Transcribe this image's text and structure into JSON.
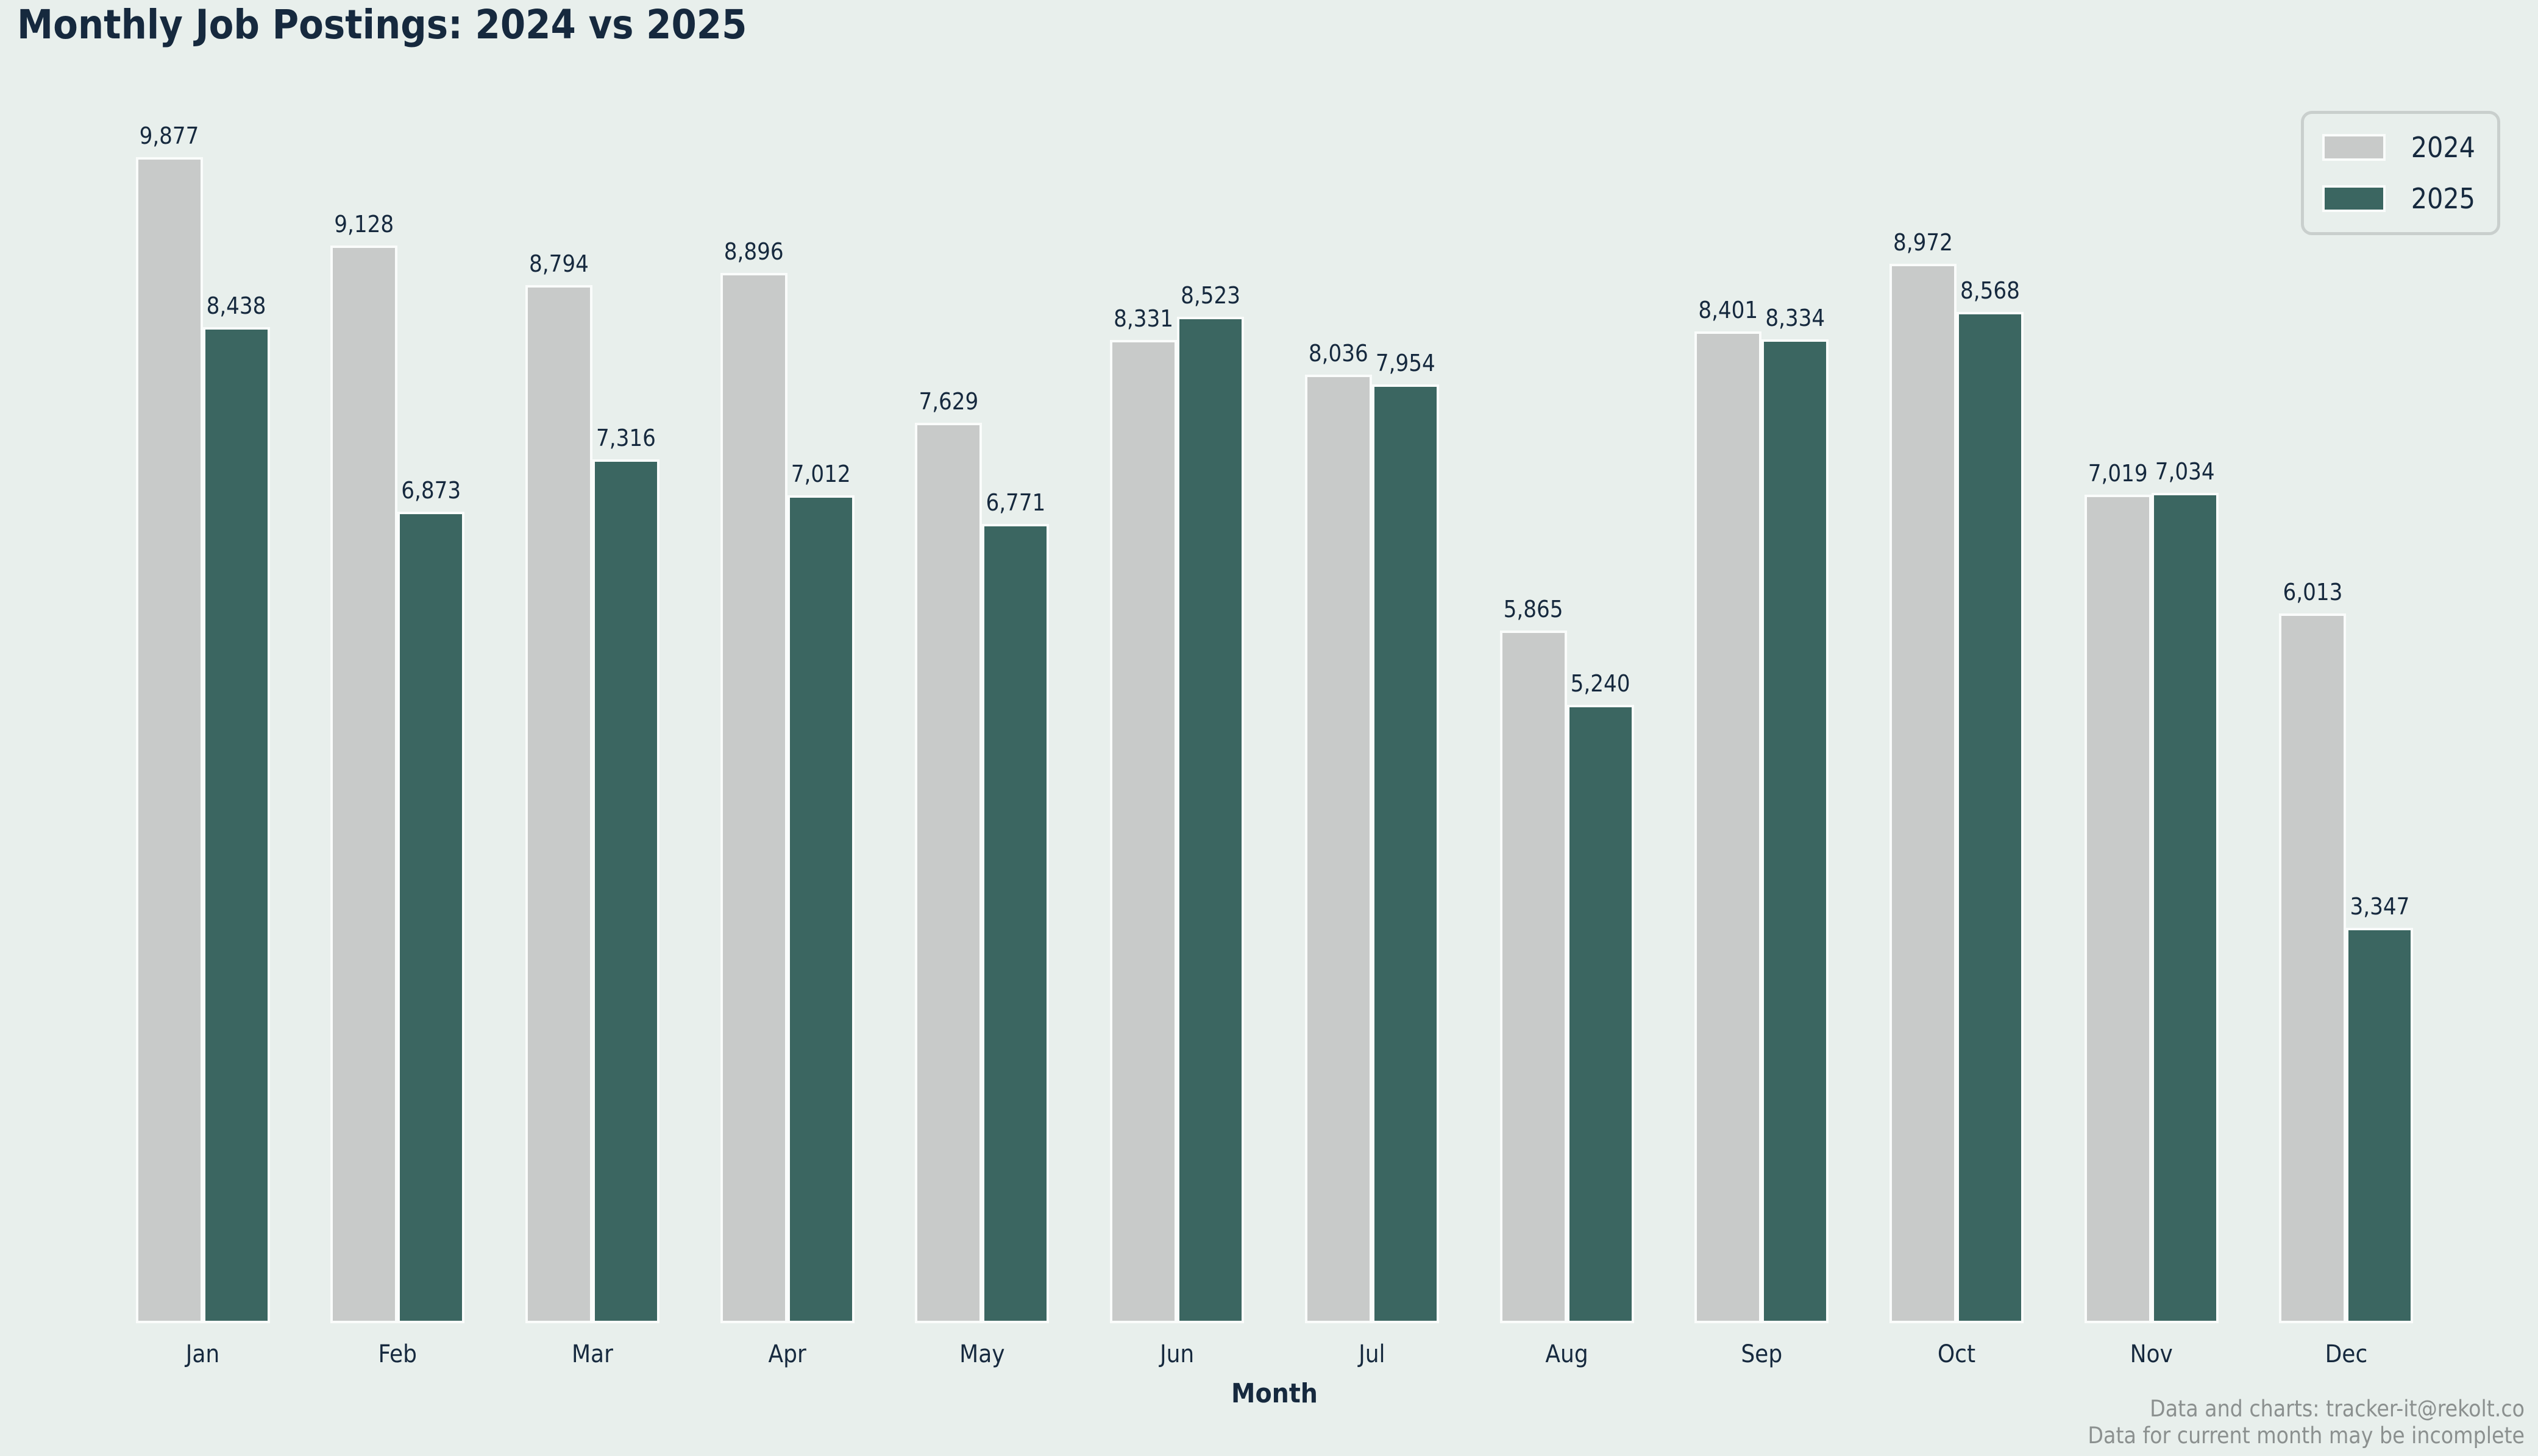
{
  "page": {
    "title": "Monthly Job Postings: 2024 vs 2025",
    "xlabel": "Month",
    "footer_line1": "Data and charts: tracker-it@rekolt.co",
    "footer_line2": "Data for current month may be incomplete"
  },
  "legend": {
    "items": [
      {
        "label": "2024",
        "color": "#c8cac9"
      },
      {
        "label": "2025",
        "color": "#3b6661"
      }
    ]
  },
  "chart_data": {
    "type": "bar",
    "title": "Monthly Job Postings: 2024 vs 2025",
    "xlabel": "Month",
    "ylabel": "",
    "categories": [
      "Jan",
      "Feb",
      "Mar",
      "Apr",
      "May",
      "Jun",
      "Jul",
      "Aug",
      "Sep",
      "Oct",
      "Nov",
      "Dec"
    ],
    "series": [
      {
        "name": "2024",
        "color": "#c8cac9",
        "values": [
          9877,
          9128,
          8794,
          8896,
          7629,
          8331,
          8036,
          5865,
          8401,
          8972,
          7019,
          6013
        ]
      },
      {
        "name": "2025",
        "color": "#3b6661",
        "values": [
          8438,
          6873,
          7316,
          7012,
          6771,
          8523,
          7954,
          5240,
          8334,
          8568,
          7034,
          3347
        ]
      }
    ],
    "ylim": [
      0,
      10200
    ],
    "grid": false,
    "legend_position": "upper right",
    "bar_value_labels": true,
    "value_label_format": "#,###"
  },
  "colors": {
    "background": "#e8efec",
    "text": "#16293e",
    "footer_text": "#8b908f",
    "bar_edge": "#fafcfb",
    "legend_border": "#c9cfcd"
  }
}
